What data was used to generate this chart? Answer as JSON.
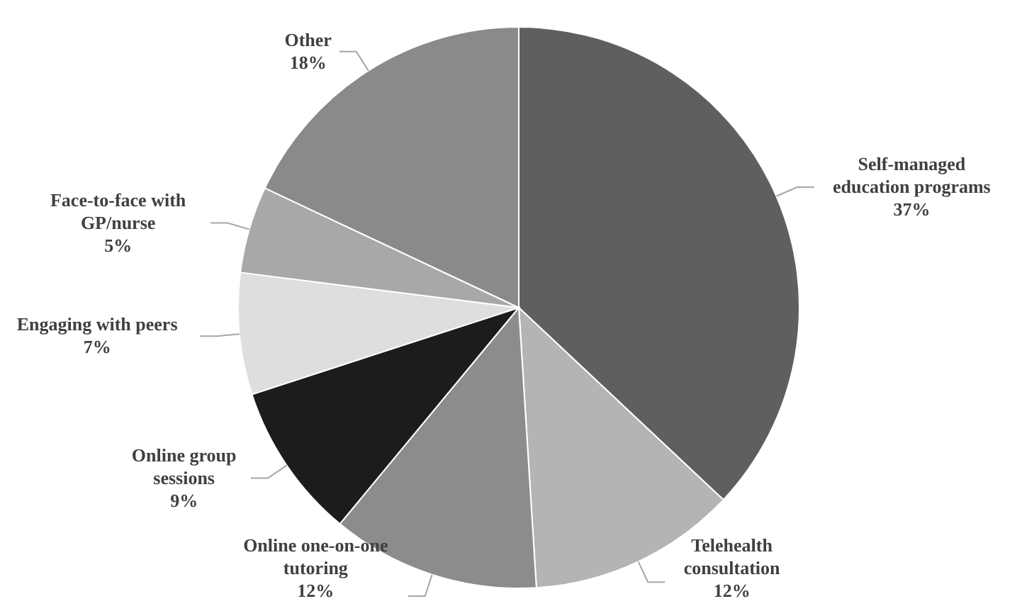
{
  "chart_data": {
    "type": "pie",
    "categories": [
      "Self-managed education programs",
      "Telehealth consultation",
      "Online one-on-one tutoring",
      "Online group sessions",
      "Engaging with peers",
      "Face-to-face with GP/nurse",
      "Other"
    ],
    "values": [
      37,
      12,
      12,
      9,
      7,
      5,
      18
    ],
    "value_labels": [
      "37%",
      "12%",
      "12%",
      "9%",
      "7%",
      "5%",
      "18%"
    ],
    "colors": [
      "#5f5f5f",
      "#b4b4b4",
      "#8c8c8c",
      "#1c1c1c",
      "#dedede",
      "#a8a8a8",
      "#8a8a8a"
    ]
  }
}
